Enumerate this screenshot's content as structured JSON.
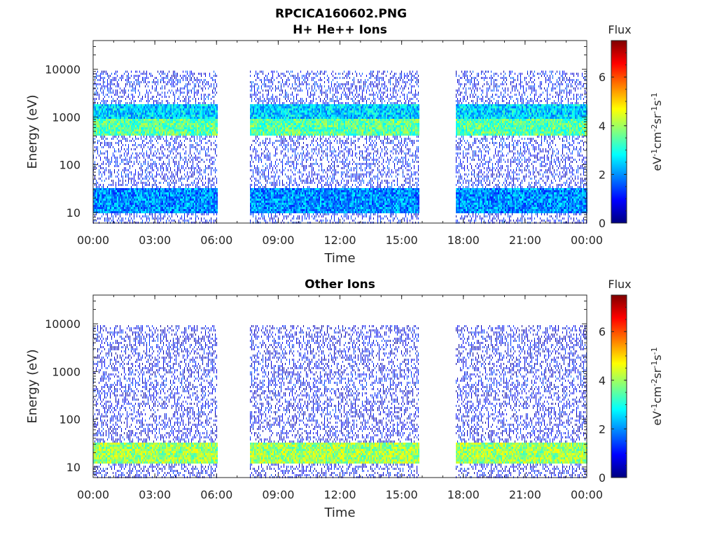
{
  "figure_title": "RPCICA160602.PNG",
  "chart_data": [
    {
      "type": "heatmap",
      "title": "H+ He++ Ions",
      "xlabel": "Time",
      "ylabel": "Energy (eV)",
      "x_ticks": [
        "00:00",
        "03:00",
        "06:00",
        "09:00",
        "12:00",
        "15:00",
        "18:00",
        "21:00",
        "00:00"
      ],
      "xlim_hours": [
        0,
        24
      ],
      "y_ticks": [
        "10",
        "100",
        "1000",
        "10000"
      ],
      "y_scale": "log",
      "ylim": [
        6,
        40000
      ],
      "data_gaps_hours": [
        [
          6.0,
          7.6
        ],
        [
          15.8,
          17.6
        ]
      ],
      "colorbar": {
        "title": "Flux",
        "label": "eV-1cm-2sr-1s-1",
        "range": [
          0,
          7.5
        ],
        "ticks": [
          "0",
          "2",
          "4",
          "6"
        ],
        "colormap": "jet"
      },
      "bands": [
        {
          "energy_range_eV": [
            450,
            1000
          ],
          "level": 3.5
        },
        {
          "energy_range_eV": [
            1000,
            2000
          ],
          "level": 2.5
        },
        {
          "energy_range_eV": [
            10,
            35
          ],
          "level": 2.0
        },
        {
          "energy_range_eV": [
            6,
            10000
          ],
          "level": 1.0
        }
      ]
    },
    {
      "type": "heatmap",
      "title": "Other Ions",
      "xlabel": "Time",
      "ylabel": "Energy (eV)",
      "x_ticks": [
        "00:00",
        "03:00",
        "06:00",
        "09:00",
        "12:00",
        "15:00",
        "18:00",
        "21:00",
        "00:00"
      ],
      "xlim_hours": [
        0,
        24
      ],
      "y_ticks": [
        "10",
        "100",
        "1000",
        "10000"
      ],
      "y_scale": "log",
      "ylim": [
        6,
        40000
      ],
      "data_gaps_hours": [
        [
          6.0,
          7.6
        ],
        [
          15.8,
          17.6
        ]
      ],
      "colorbar": {
        "title": "Flux",
        "label": "eV-1cm-2sr-1s-1",
        "range": [
          0,
          7.5
        ],
        "ticks": [
          "0",
          "2",
          "4",
          "6"
        ],
        "colormap": "jet"
      },
      "bands": [
        {
          "energy_range_eV": [
            12,
            35
          ],
          "level": 4.0
        },
        {
          "energy_range_eV": [
            500,
            900
          ],
          "level": 1.0
        },
        {
          "energy_range_eV": [
            6,
            10000
          ],
          "level": 0.8
        }
      ]
    }
  ]
}
